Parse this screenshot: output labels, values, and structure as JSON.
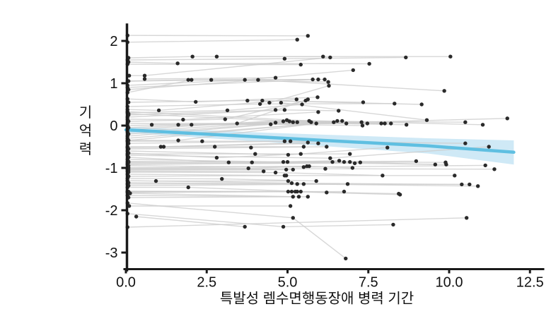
{
  "chart_data": {
    "type": "scatter",
    "title": "",
    "xlabel": "특발성 렘수면행동장애 병력 기간",
    "ylabel": "기억력",
    "xlim": [
      0,
      12.9
    ],
    "ylim": [
      -3.4,
      2.4
    ],
    "xticks": [
      0.0,
      2.5,
      5.0,
      7.5,
      10.0,
      12.5
    ],
    "xtick_labels": [
      "0.0",
      "2.5",
      "5.0",
      "7.5",
      "10.0",
      "12.5"
    ],
    "yticks": [
      2,
      1,
      0,
      -1,
      -2,
      -3
    ],
    "ytick_labels": [
      "2",
      "1",
      "0",
      "-1",
      "-2",
      "-3"
    ],
    "grid": false,
    "legend": "none",
    "description": "Spaghetti plot: each subject's repeated memory z-scores (기억력) connected by light gray lines across disease duration of idiopathic REM sleep behavior disorder (특발성 렘수면행동장애 병력 기간), with blue linear fit and shaded confidence band.",
    "subjects": [
      [
        [
          0.05,
          2.13
        ],
        [
          5.63,
          2.12
        ]
      ],
      [
        [
          0.05,
          1.97
        ],
        [
          5.3,
          2.03
        ]
      ],
      [
        [
          0.08,
          1.6
        ],
        [
          2.06,
          1.63
        ],
        [
          6.1,
          1.63
        ]
      ],
      [
        [
          0.05,
          1.55
        ],
        [
          4.91,
          1.58
        ],
        [
          8.66,
          1.61
        ]
      ],
      [
        [
          0.08,
          1.5
        ],
        [
          1.6,
          1.47
        ],
        [
          7.53,
          1.46
        ]
      ],
      [
        [
          0.05,
          1.45
        ],
        [
          5.41,
          1.44
        ]
      ],
      [
        [
          2.81,
          1.63
        ],
        [
          10.04,
          1.63
        ]
      ],
      [
        [
          0.1,
          1.18
        ],
        [
          0.58,
          1.18
        ],
        [
          6.32,
          1.61
        ]
      ],
      [
        [
          0.58,
          1.1
        ],
        [
          4.63,
          1.13
        ]
      ],
      [
        [
          0.05,
          1.05
        ],
        [
          1.93,
          1.08
        ],
        [
          5.78,
          1.09
        ]
      ],
      [
        [
          0.08,
          1.05
        ],
        [
          2.64,
          1.08
        ],
        [
          6.15,
          1.09
        ]
      ],
      [
        [
          0.05,
          0.95
        ],
        [
          3.68,
          1.08
        ],
        [
          7.03,
          1.31
        ]
      ],
      [
        [
          0.05,
          0.9
        ],
        [
          5.95,
          1.09
        ]
      ],
      [
        [
          0.08,
          0.85
        ],
        [
          4.09,
          1.08
        ],
        [
          9.85,
          0.82
        ]
      ],
      [
        [
          0.05,
          0.78
        ],
        [
          2.03,
          1.08
        ],
        [
          6.26,
          1.03
        ]
      ],
      [
        [
          0.05,
          0.63
        ],
        [
          2.16,
          0.56
        ],
        [
          5.93,
          0.67
        ]
      ],
      [
        [
          0.08,
          0.55
        ],
        [
          3.76,
          0.59
        ],
        [
          7.34,
          0.55
        ]
      ],
      [
        [
          0.05,
          0.45
        ],
        [
          4.15,
          0.51
        ],
        [
          8.31,
          0.52
        ]
      ],
      [
        [
          0.05,
          0.38
        ],
        [
          1.02,
          0.36
        ],
        [
          5.28,
          0.62
        ]
      ],
      [
        [
          4.22,
          0.59
        ],
        [
          9.15,
          0.5
        ]
      ],
      [
        [
          4.44,
          0.54
        ],
        [
          6.28,
          0.94
        ]
      ],
      [
        [
          4.8,
          0.54
        ],
        [
          9.31,
          0.13
        ]
      ],
      [
        [
          0.05,
          0.3
        ],
        [
          3.14,
          0.36
        ],
        [
          5.45,
          0.5
        ]
      ],
      [
        [
          0.08,
          0.25
        ],
        [
          4.63,
          0.37
        ]
      ],
      [
        [
          0.05,
          0.2
        ],
        [
          4.91,
          0.37
        ],
        [
          6.58,
          0.35
        ]
      ],
      [
        [
          0.05,
          0.15
        ],
        [
          1.77,
          0.14
        ],
        [
          5.95,
          0.32
        ]
      ],
      [
        [
          0.08,
          0.1
        ],
        [
          3.07,
          0.15
        ],
        [
          5.56,
          0.59
        ]
      ],
      [
        [
          0.05,
          0.05
        ],
        [
          3.44,
          0.05
        ],
        [
          5.63,
          0.62
        ]
      ],
      [
        [
          0.8,
          0.02
        ],
        [
          4.48,
          0.03
        ],
        [
          7.32,
          0.0
        ]
      ],
      [
        [
          1.62,
          0.02
        ],
        [
          5.89,
          0.05
        ],
        [
          11.8,
          0.17
        ]
      ],
      [
        [
          2.03,
          0.02
        ],
        [
          6.82,
          0.05
        ]
      ],
      [
        [
          0.05,
          0.0
        ],
        [
          4.63,
          0.07
        ],
        [
          8.68,
          0.02
        ]
      ],
      [
        [
          0.08,
          -0.05
        ],
        [
          4.87,
          0.1
        ],
        [
          10.5,
          0.08
        ]
      ],
      [
        [
          0.05,
          -0.1
        ],
        [
          4.98,
          0.13
        ],
        [
          11.04,
          0.02
        ]
      ],
      [
        [
          0.05,
          -0.15
        ],
        [
          5.06,
          0.1
        ],
        [
          7.9,
          0.05
        ]
      ],
      [
        [
          0.08,
          -0.2
        ],
        [
          5.17,
          0.08
        ],
        [
          8.01,
          0.05
        ]
      ],
      [
        [
          0.05,
          -0.25
        ],
        [
          5.3,
          0.08
        ],
        [
          8.2,
          0.05
        ]
      ],
      [
        [
          0.05,
          0.33
        ],
        [
          5.67,
          0.11
        ],
        [
          7.29,
          0.08
        ]
      ],
      [
        [
          0.08,
          0.28
        ],
        [
          5.73,
          0.08
        ],
        [
          7.47,
          0.05
        ]
      ],
      [
        [
          0.05,
          -0.3
        ],
        [
          6.43,
          0.08
        ]
      ],
      [
        [
          0.08,
          -0.35
        ],
        [
          6.69,
          0.11
        ]
      ],
      [
        [
          0.05,
          -0.35
        ],
        [
          1.62,
          -0.35
        ],
        [
          6.54,
          0.11
        ]
      ],
      [
        [
          0.05,
          -0.37
        ],
        [
          2.36,
          -0.37
        ],
        [
          4.91,
          -0.37
        ]
      ],
      [
        [
          0.08,
          -0.42
        ],
        [
          5.09,
          -0.37
        ],
        [
          10.5,
          -0.42
        ]
      ],
      [
        [
          0.05,
          -0.5
        ],
        [
          1.08,
          -0.5
        ],
        [
          5.63,
          -0.4
        ]
      ],
      [
        [
          1.17,
          -0.5
        ],
        [
          5.95,
          -0.42
        ]
      ],
      [
        [
          0.05,
          -0.52
        ],
        [
          2.75,
          -0.5
        ],
        [
          5.5,
          -0.5
        ]
      ],
      [
        [
          0.08,
          -0.55
        ],
        [
          3.87,
          -0.52
        ],
        [
          6.21,
          -0.5
        ]
      ],
      [
        [
          0.05,
          -0.6
        ],
        [
          5.02,
          -0.69
        ],
        [
          8.09,
          -0.52
        ]
      ],
      [
        [
          0.08,
          -0.65
        ],
        [
          2.81,
          -0.76
        ],
        [
          5.41,
          -0.67
        ]
      ],
      [
        [
          0.05,
          -0.67
        ],
        [
          4.0,
          -0.67
        ],
        [
          6.93,
          -0.67
        ]
      ],
      [
        [
          0.05,
          -0.7
        ],
        [
          6.32,
          -0.77
        ],
        [
          11.23,
          -0.5
        ]
      ],
      [
        [
          0.08,
          -0.75
        ],
        [
          3.18,
          -0.87
        ],
        [
          6.39,
          -0.86
        ]
      ],
      [
        [
          0.05,
          -0.8
        ],
        [
          4.87,
          -0.86
        ],
        [
          8.98,
          -0.84
        ]
      ],
      [
        [
          0.08,
          -0.85
        ],
        [
          3.9,
          -0.87
        ],
        [
          6.6,
          -0.83
        ]
      ],
      [
        [
          0.05,
          -0.86
        ],
        [
          5.0,
          -0.86
        ],
        [
          6.75,
          -0.86
        ]
      ],
      [
        [
          0.08,
          -0.87
        ],
        [
          6.93,
          -0.86
        ],
        [
          9.89,
          -0.87
        ]
      ],
      [
        [
          0.05,
          -0.9
        ],
        [
          7.08,
          -0.89
        ],
        [
          9.91,
          -0.92
        ]
      ],
      [
        [
          0.05,
          -0.92
        ],
        [
          7.25,
          -0.87
        ],
        [
          9.57,
          -0.92
        ]
      ],
      [
        [
          0.08,
          -0.95
        ],
        [
          5.5,
          -0.98
        ],
        [
          11.12,
          -0.94
        ]
      ],
      [
        [
          0.05,
          -1.0
        ],
        [
          3.79,
          -1.01
        ],
        [
          5.6,
          -0.96
        ]
      ],
      [
        [
          0.08,
          -1.0
        ],
        [
          5.67,
          -0.96
        ],
        [
          7.01,
          -1.0
        ]
      ],
      [
        [
          0.05,
          -1.02
        ],
        [
          6.17,
          -1.02
        ],
        [
          11.4,
          -1.03
        ]
      ],
      [
        [
          0.05,
          -1.04
        ],
        [
          5.17,
          -1.04
        ]
      ],
      [
        [
          0.08,
          -1.05
        ],
        [
          4.96,
          -1.04
        ]
      ],
      [
        [
          0.05,
          -1.08
        ],
        [
          4.26,
          -1.08
        ]
      ],
      [
        [
          0.08,
          -1.1
        ],
        [
          4.63,
          -1.11
        ],
        [
          7.94,
          -1.18
        ]
      ],
      [
        [
          0.05,
          -1.15
        ],
        [
          4.91,
          -1.18
        ],
        [
          10.17,
          -1.18
        ]
      ],
      [
        [
          0.08,
          -1.2
        ],
        [
          4.96,
          -1.18
        ]
      ],
      [
        [
          0.05,
          -1.25
        ],
        [
          2.97,
          -1.26
        ],
        [
          5.89,
          -1.31
        ]
      ],
      [
        [
          0.93,
          -1.31
        ],
        [
          5.02,
          -1.31
        ]
      ],
      [
        [
          0.05,
          -1.3
        ],
        [
          5.13,
          -1.36
        ],
        [
          10.39,
          -1.39
        ]
      ],
      [
        [
          0.08,
          -1.35
        ],
        [
          5.3,
          -1.38
        ],
        [
          10.63,
          -1.39
        ]
      ],
      [
        [
          0.05,
          -1.38
        ],
        [
          5.5,
          -1.38
        ],
        [
          10.89,
          -1.43
        ]
      ],
      [
        [
          0.08,
          -1.42
        ],
        [
          6.86,
          -1.38
        ]
      ],
      [
        [
          0.05,
          -1.46
        ],
        [
          1.93,
          -1.46
        ],
        [
          6.21,
          -1.58
        ]
      ],
      [
        [
          0.05,
          -1.55
        ],
        [
          5.02,
          -1.56
        ],
        [
          8.48,
          -1.63
        ]
      ],
      [
        [
          0.08,
          -1.56
        ],
        [
          5.13,
          -1.56
        ]
      ],
      [
        [
          0.05,
          -1.56
        ],
        [
          5.24,
          -1.56
        ],
        [
          8.44,
          -1.61
        ]
      ],
      [
        [
          0.08,
          -1.57
        ],
        [
          5.3,
          -1.56
        ]
      ],
      [
        [
          0.05,
          -1.58
        ],
        [
          5.41,
          -1.56
        ],
        [
          6.75,
          -1.56
        ]
      ],
      [
        [
          0.13,
          -1.6
        ],
        [
          5.17,
          -1.68
        ]
      ],
      [
        [
          0.05,
          -1.65
        ],
        [
          5.35,
          -1.68
        ]
      ],
      [
        [
          0.08,
          -1.7
        ],
        [
          5.63,
          -1.68
        ]
      ],
      [
        [
          0.1,
          -1.9
        ],
        [
          5.09,
          -1.9
        ]
      ],
      [
        [
          0.05,
          -1.83
        ],
        [
          5.17,
          -2.18
        ],
        [
          6.8,
          -3.14
        ]
      ],
      [
        [
          0.05,
          -2.08
        ],
        [
          4.87,
          -2.39
        ],
        [
          8.27,
          -2.34
        ]
      ],
      [
        [
          0.32,
          -2.15
        ],
        [
          3.68,
          -2.39
        ]
      ],
      [
        [
          0.05,
          -2.4
        ],
        [
          10.54,
          -2.18
        ]
      ]
    ],
    "trend": {
      "x": [
        0,
        4.4,
        9.35,
        12
      ],
      "y": [
        -0.1,
        -0.28,
        -0.48,
        -0.63
      ],
      "ci_upper": [
        -0.03,
        -0.17,
        -0.3,
        -0.35
      ],
      "ci_lower": [
        -0.17,
        -0.39,
        -0.66,
        -0.92
      ]
    },
    "colors": {
      "point": "#2a2a2a",
      "subject_line": "#cdcdcd",
      "trend_line": "#5fbfe1",
      "confidence_band": "#cfe9f6",
      "axis": "#1a1a1a",
      "text": "#111111",
      "background": "#ffffff"
    }
  }
}
